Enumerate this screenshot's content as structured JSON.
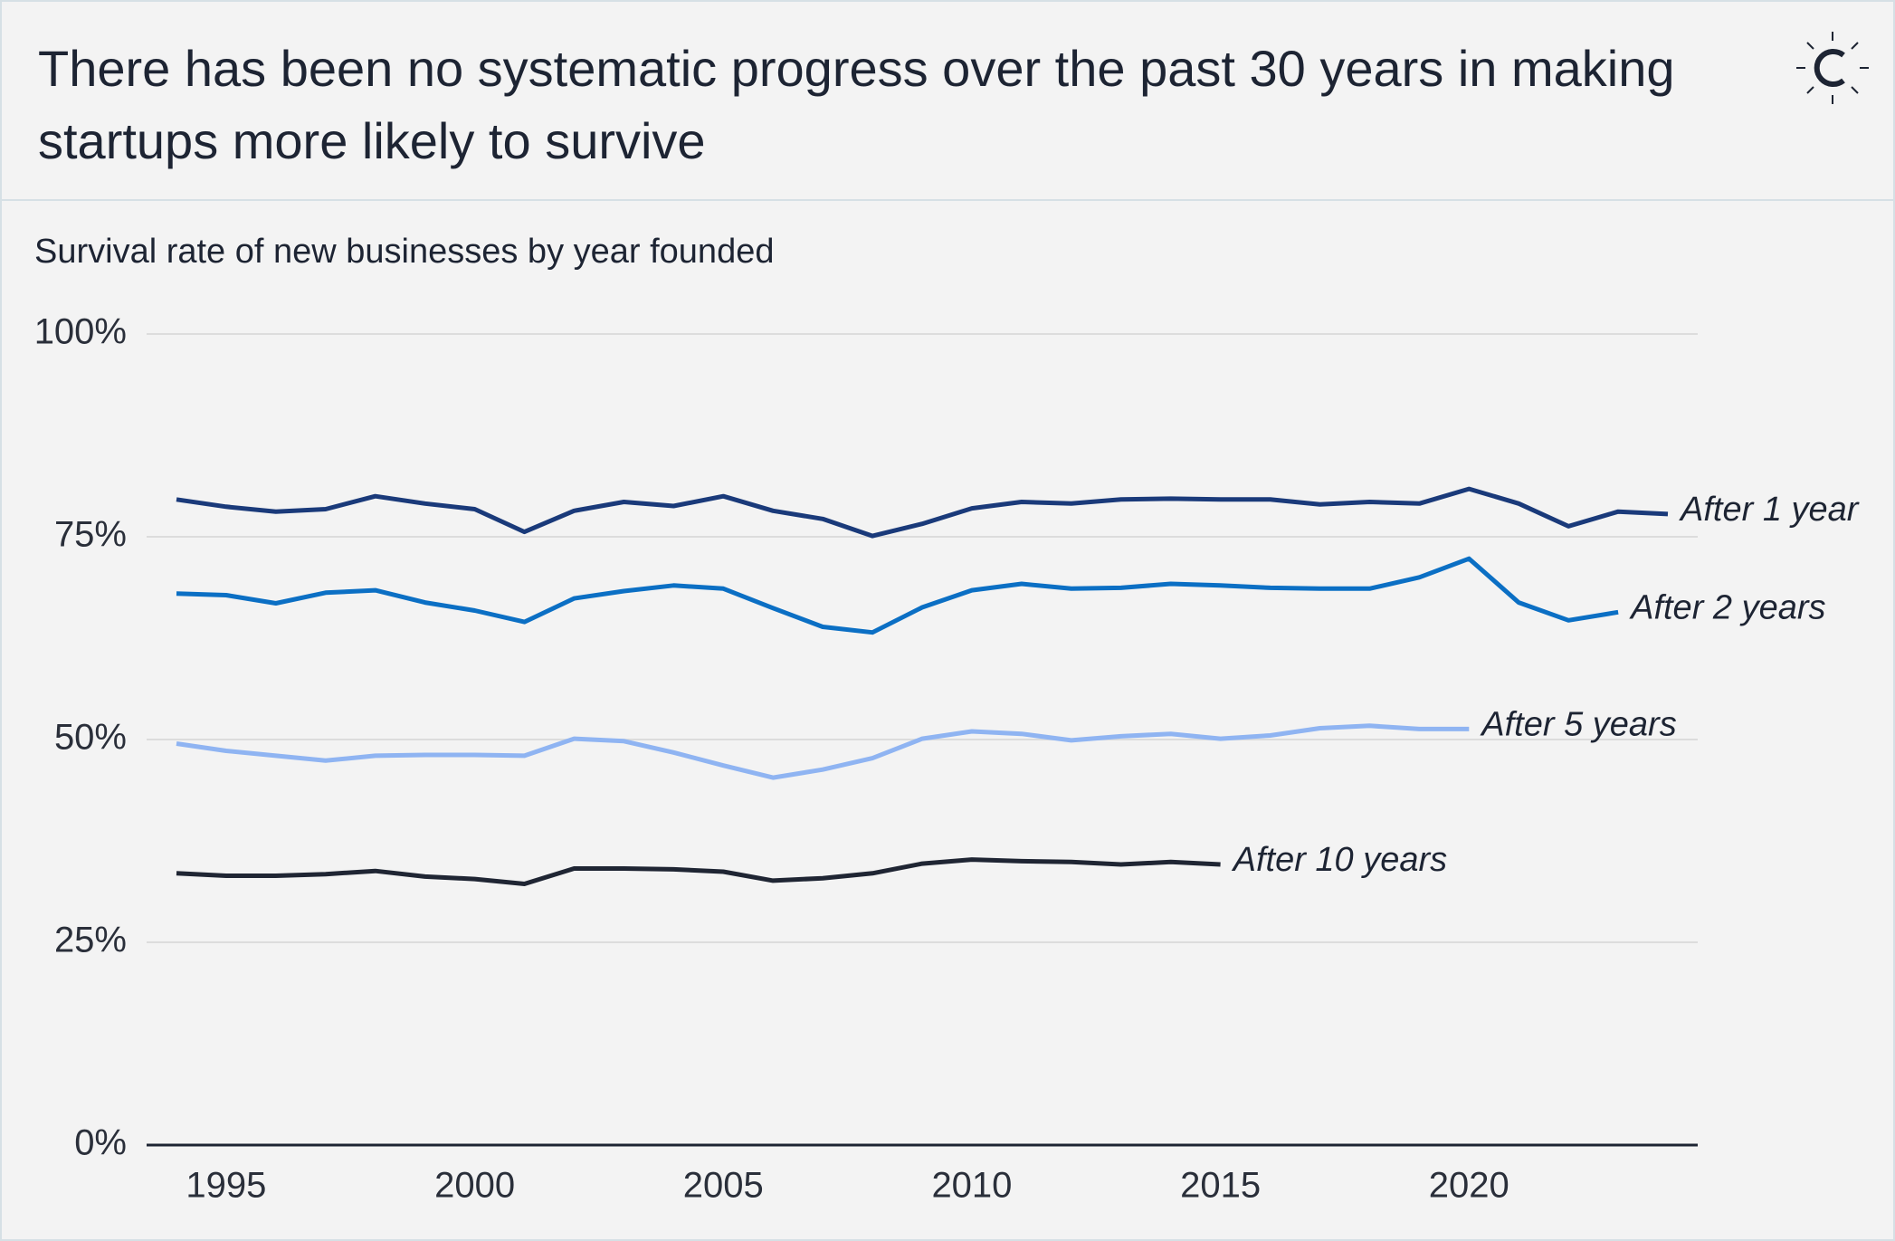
{
  "chart_data": {
    "type": "line",
    "title": "There has been no systematic progress over the past 30 years in making startups more likely to survive",
    "subtitle": "Survival rate of new businesses by year founded",
    "x": [
      1994,
      1995,
      1996,
      1997,
      1998,
      1999,
      2000,
      2001,
      2002,
      2003,
      2004,
      2005,
      2006,
      2007,
      2008,
      2009,
      2010,
      2011,
      2012,
      2013,
      2014,
      2015,
      2016,
      2017,
      2018,
      2019,
      2020,
      2021,
      2022,
      2023,
      2024
    ],
    "series": [
      {
        "name": "After 1 year",
        "color": "#1a3a7a",
        "values": [
          79.6,
          78.7,
          78.1,
          78.4,
          80.0,
          79.1,
          78.4,
          75.6,
          78.2,
          79.3,
          78.8,
          80.0,
          78.2,
          77.2,
          75.1,
          76.6,
          78.5,
          79.3,
          79.1,
          79.6,
          79.7,
          79.6,
          79.6,
          79.0,
          79.3,
          79.1,
          80.9,
          79.1,
          76.3,
          78.1,
          77.8
        ]
      },
      {
        "name": "After 2 years",
        "color": "#0b6fc4",
        "values": [
          68.0,
          67.8,
          66.8,
          68.1,
          68.4,
          66.9,
          65.9,
          64.5,
          67.4,
          68.3,
          69.0,
          68.6,
          66.2,
          63.9,
          63.2,
          66.3,
          68.4,
          69.2,
          68.6,
          68.7,
          69.2,
          69.0,
          68.7,
          68.6,
          68.6,
          70.0,
          72.3,
          66.9,
          64.7,
          65.7,
          null
        ]
      },
      {
        "name": "After 5 years",
        "color": "#8fb4f2",
        "values": [
          49.5,
          48.6,
          48.0,
          47.4,
          48.0,
          48.1,
          48.1,
          48.0,
          50.1,
          49.8,
          48.4,
          46.8,
          45.3,
          46.3,
          47.7,
          50.1,
          51.0,
          50.7,
          49.9,
          50.4,
          50.7,
          50.1,
          50.5,
          51.4,
          51.7,
          51.3,
          51.3,
          null,
          null,
          null,
          null
        ]
      },
      {
        "name": "After 10 years",
        "color": "#1f2533",
        "values": [
          33.5,
          33.2,
          33.2,
          33.4,
          33.8,
          33.1,
          32.8,
          32.2,
          34.1,
          34.1,
          34.0,
          33.7,
          32.6,
          32.9,
          33.5,
          34.7,
          35.2,
          35.0,
          34.9,
          34.6,
          34.9,
          34.6,
          null,
          null,
          null,
          null,
          null,
          null,
          null,
          null,
          null
        ]
      }
    ],
    "xlim": [
      1993.4,
      2024.6
    ],
    "xticks": [
      1995,
      2000,
      2005,
      2010,
      2015,
      2020
    ],
    "ylim": [
      0,
      100
    ],
    "yticks": [
      {
        "value": 0,
        "label": "0%"
      },
      {
        "value": 25,
        "label": "25%"
      },
      {
        "value": 50,
        "label": "50%"
      },
      {
        "value": 75,
        "label": "75%"
      },
      {
        "value": 100,
        "label": "100%"
      }
    ],
    "grid": true
  }
}
